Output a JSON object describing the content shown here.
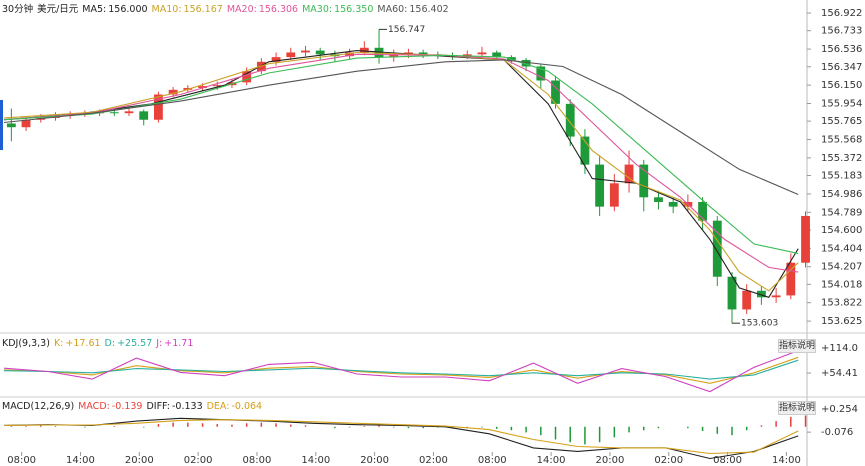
{
  "chart_data": [
    {
      "type": "candlestick",
      "title": "30分钟",
      "subtitle": "美元/日元",
      "open": [
        155.74,
        155.7,
        155.78,
        155.8,
        155.82,
        155.84,
        155.85,
        155.86,
        155.85,
        155.87,
        155.78,
        156.05,
        156.1,
        156.12,
        156.14,
        156.15,
        156.18,
        156.3,
        156.4,
        156.45,
        156.5,
        156.52,
        156.48,
        156.46,
        156.5,
        156.55,
        156.45,
        156.48,
        156.5,
        156.48,
        156.47,
        156.45,
        156.48,
        156.5,
        156.45,
        156.42,
        156.35,
        156.2,
        155.95,
        155.6,
        155.3,
        154.85,
        155.1,
        155.3,
        154.95,
        154.9,
        154.85,
        154.9,
        154.7,
        154.1,
        153.75,
        153.95,
        153.88,
        153.9,
        154.25
      ],
      "high": [
        155.9,
        155.82,
        155.84,
        155.86,
        155.87,
        155.88,
        155.89,
        155.88,
        155.9,
        155.89,
        156.08,
        156.13,
        156.15,
        156.17,
        156.19,
        156.22,
        156.34,
        156.44,
        156.5,
        156.55,
        156.57,
        156.55,
        156.52,
        156.54,
        156.62,
        156.747,
        156.53,
        156.54,
        156.53,
        156.51,
        156.5,
        156.52,
        156.56,
        156.52,
        156.47,
        156.44,
        156.37,
        156.25,
        156.0,
        155.68,
        155.4,
        155.2,
        155.45,
        155.35,
        155.02,
        154.95,
        154.98,
        154.95,
        154.75,
        154.15,
        154.02,
        154.0,
        153.98,
        154.35,
        154.8
      ],
      "low": [
        155.55,
        155.66,
        155.75,
        155.77,
        155.79,
        155.81,
        155.82,
        155.82,
        155.82,
        155.72,
        155.75,
        156.02,
        156.07,
        156.09,
        156.1,
        156.12,
        156.15,
        156.27,
        156.36,
        156.42,
        156.46,
        156.42,
        156.4,
        156.43,
        156.47,
        156.38,
        156.4,
        156.44,
        156.44,
        156.43,
        156.42,
        156.43,
        156.46,
        156.42,
        156.38,
        156.3,
        156.12,
        155.9,
        155.5,
        155.2,
        154.75,
        154.8,
        155.0,
        154.8,
        154.82,
        154.78,
        154.8,
        154.6,
        154.0,
        153.603,
        153.7,
        153.8,
        153.82,
        153.86,
        154.2
      ],
      "close": [
        155.7,
        155.78,
        155.8,
        155.82,
        155.84,
        155.85,
        155.86,
        155.85,
        155.87,
        155.78,
        156.05,
        156.1,
        156.12,
        156.14,
        156.15,
        156.18,
        156.3,
        156.4,
        156.45,
        156.5,
        156.52,
        156.48,
        156.46,
        156.5,
        156.55,
        156.45,
        156.48,
        156.5,
        156.48,
        156.47,
        156.45,
        156.48,
        156.5,
        156.45,
        156.42,
        156.35,
        156.2,
        155.95,
        155.6,
        155.3,
        154.85,
        155.1,
        155.3,
        154.95,
        154.9,
        154.85,
        154.9,
        154.7,
        154.1,
        153.75,
        153.95,
        153.88,
        153.9,
        154.25,
        154.75
      ],
      "up_color": "#e8413a",
      "down_color": "#1f9a3a",
      "series": [
        {
          "name": "MA5:",
          "legend_value": {
            "value": 156,
            "label": "156.000"
          },
          "color": "#222222",
          "x": [
            0,
            5,
            10,
            15,
            18,
            24,
            30,
            34,
            37,
            40,
            43,
            46,
            48,
            50,
            52,
            54
          ],
          "values": [
            155.78,
            155.84,
            155.95,
            156.15,
            156.4,
            156.52,
            156.46,
            156.42,
            155.95,
            155.15,
            155.1,
            154.9,
            154.5,
            153.98,
            153.88,
            154.4
          ]
        },
        {
          "name": "MA10:",
          "legend_value": 156.167,
          "color": "#c9a227",
          "x": [
            0,
            6,
            12,
            18,
            24,
            30,
            34,
            37,
            40,
            43,
            46,
            48,
            50,
            52,
            54
          ],
          "values": [
            155.8,
            155.86,
            156.08,
            156.38,
            156.5,
            156.47,
            156.42,
            156.05,
            155.45,
            155.1,
            154.92,
            154.6,
            154.15,
            153.95,
            154.25
          ]
        },
        {
          "name": "MA20:",
          "legend_value": 156.306,
          "color": "#e0559a",
          "x": [
            0,
            6,
            12,
            18,
            24,
            30,
            34,
            37,
            40,
            43,
            46,
            49,
            52,
            54
          ],
          "values": [
            155.78,
            155.85,
            156.05,
            156.33,
            156.48,
            156.47,
            156.43,
            156.2,
            155.75,
            155.3,
            154.95,
            154.5,
            154.2,
            154.15
          ]
        },
        {
          "name": "MA30:",
          "legend_value": {
            "value": 156.35,
            "label": "156.350"
          },
          "color": "#3cba54",
          "x": [
            0,
            6,
            12,
            18,
            24,
            30,
            34,
            37,
            40,
            44,
            48,
            51,
            54
          ],
          "values": [
            155.78,
            155.84,
            156.0,
            156.28,
            156.44,
            156.47,
            156.45,
            156.3,
            155.95,
            155.4,
            154.85,
            154.45,
            154.35
          ]
        },
        {
          "name": "MA60:",
          "legend_value": 156.402,
          "color": "#555555",
          "x": [
            0,
            6,
            12,
            18,
            24,
            30,
            34,
            38,
            42,
            46,
            50,
            54
          ],
          "values": [
            155.75,
            155.85,
            155.98,
            156.15,
            156.3,
            156.4,
            156.42,
            156.35,
            156.05,
            155.65,
            155.25,
            154.98
          ]
        }
      ],
      "xlim": [
        0,
        54.6
      ],
      "xticks": [
        {
          "value": 1.2,
          "label": "08:00"
        },
        {
          "value": 5.2,
          "label": "14:00"
        },
        {
          "value": 9.2,
          "label": "20:00"
        },
        {
          "value": 13.2,
          "label": "02:00"
        },
        {
          "value": 17.2,
          "label": "08:00"
        },
        {
          "value": 21.2,
          "label": "14:00"
        },
        {
          "value": 25.2,
          "label": "20:00"
        },
        {
          "value": 29.2,
          "label": "02:00"
        },
        {
          "value": 33.2,
          "label": "08:00"
        },
        {
          "value": 37.2,
          "label": "14:00"
        },
        {
          "value": 41.2,
          "label": "20:00"
        },
        {
          "value": 45.2,
          "label": "02:00"
        },
        {
          "value": 49.2,
          "label": "08:00"
        },
        {
          "value": 53.2,
          "label": "14:00"
        }
      ],
      "ylim": [
        153.53,
        157.04
      ],
      "yticks": [
        156.922,
        156.733,
        156.536,
        156.347,
        {
          "value": 156.15,
          "label": "156.150"
        },
        155.954,
        155.765,
        155.568,
        155.372,
        155.183,
        154.986,
        154.789,
        {
          "value": 154.6,
          "label": "154.600"
        },
        154.404,
        154.207,
        154.018,
        153.822,
        153.625
      ],
      "annotations": [
        "156.747",
        "153.603"
      ]
    },
    {
      "type": "line",
      "title": "KDJ(9,3,3)",
      "button": "指标说明",
      "x": [
        0,
        3,
        6,
        9,
        12,
        15,
        18,
        21,
        24,
        27,
        30,
        33,
        36,
        39,
        42,
        45,
        48,
        51,
        54
      ],
      "series": [
        {
          "name": "K:",
          "legend_value": {
            "value": 17.61,
            "label": "+17.61"
          },
          "color": "#d4a017",
          "values": [
            62,
            58,
            50,
            72,
            60,
            55,
            66,
            70,
            58,
            52,
            50,
            44,
            62,
            42,
            58,
            50,
            30,
            55,
            92
          ]
        },
        {
          "name": "D:",
          "legend_value": {
            "value": 25.57,
            "label": "+25.57"
          },
          "color": "#2ab0a0",
          "values": [
            60,
            58,
            55,
            65,
            62,
            58,
            62,
            66,
            60,
            55,
            52,
            48,
            55,
            48,
            55,
            52,
            40,
            50,
            85
          ]
        },
        {
          "name": "J:",
          "legend_value": {
            "value": 1.71,
            "label": "+1.71"
          },
          "color": "#d03fc0",
          "values": [
            66,
            58,
            40,
            90,
            56,
            48,
            75,
            80,
            52,
            45,
            45,
            36,
            78,
            30,
            65,
            46,
            10,
            68,
            108
          ]
        }
      ],
      "xlim": [
        0,
        54.6
      ],
      "ylim": [
        2,
        138
      ],
      "yticks": [
        {
          "value": 114,
          "label": "+114.0"
        },
        {
          "value": 54.41,
          "label": "+54.41"
        }
      ]
    },
    {
      "type": "macd",
      "title": "MACD(12,26,9)",
      "button": "指标说明",
      "series": [
        {
          "name": "MACD:",
          "legend_value": -0.139,
          "color": "#e8413a",
          "neg_color": "#1f9a3a",
          "values": [
            0.01,
            0.01,
            0.02,
            0.01,
            0,
            -0.01,
            0,
            0.01,
            0,
            -0.01,
            0.04,
            0.06,
            0.06,
            0.05,
            0.04,
            0.03,
            0.05,
            0.06,
            0.05,
            0.03,
            0.02,
            0,
            -0.02,
            -0.01,
            0.01,
            0.02,
            -0.01,
            -0.02,
            -0.02,
            -0.01,
            -0.02,
            -0.01,
            -0.01,
            -0.03,
            -0.05,
            -0.08,
            -0.12,
            -0.18,
            -0.22,
            -0.25,
            -0.22,
            -0.15,
            -0.08,
            -0.05,
            -0.02,
            0,
            -0.02,
            -0.06,
            -0.1,
            -0.12,
            -0.05,
            0.02,
            0.08,
            0.14,
            0.16
          ]
        },
        {
          "name": "DIFF:",
          "legend_value": -0.133,
          "color": "#222222",
          "x": [
            0,
            3,
            6,
            9,
            12,
            15,
            18,
            21,
            24,
            27,
            30,
            33,
            36,
            39,
            42,
            45,
            48,
            51,
            54
          ],
          "values": [
            0.02,
            0.03,
            0.02,
            0.08,
            0.12,
            0.1,
            0.08,
            0.05,
            0.03,
            0.02,
            0,
            -0.1,
            -0.3,
            -0.35,
            -0.3,
            -0.3,
            -0.45,
            -0.35,
            -0.13
          ]
        },
        {
          "name": "DEA:",
          "legend_value": -0.064,
          "color": "#d4a017",
          "x": [
            0,
            3,
            6,
            9,
            12,
            15,
            18,
            21,
            24,
            27,
            30,
            33,
            36,
            39,
            42,
            45,
            48,
            51,
            54
          ],
          "values": [
            0.02,
            0.025,
            0.025,
            0.05,
            0.09,
            0.1,
            0.09,
            0.07,
            0.05,
            0.03,
            0.01,
            -0.04,
            -0.18,
            -0.28,
            -0.3,
            -0.3,
            -0.38,
            -0.36,
            -0.06
          ]
        }
      ],
      "xlim": [
        0,
        54.6
      ],
      "ylim": [
        -0.5,
        0.38
      ],
      "yticks": [
        {
          "value": 0.254,
          "label": "+0.254"
        },
        -0.076
      ]
    }
  ]
}
